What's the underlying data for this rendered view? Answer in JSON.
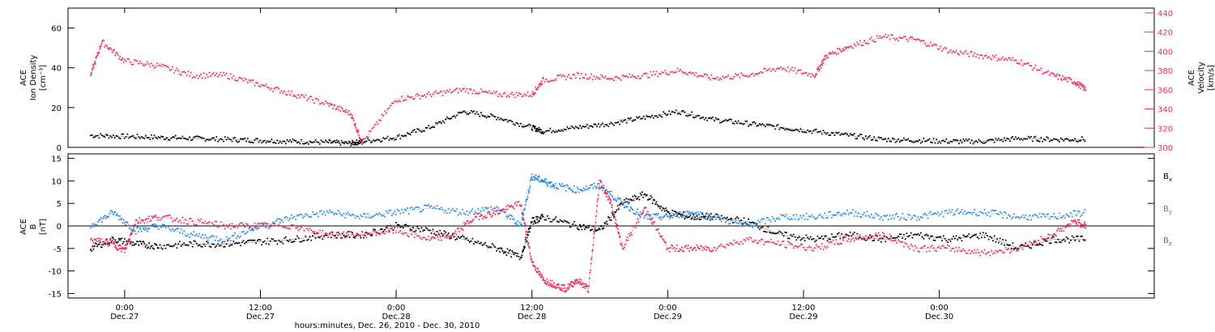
{
  "chart_data": [
    {
      "type": "scatter",
      "panel": "top",
      "ylabel_left": [
        "ACE",
        "Ion Density",
        "[cm⁻³]"
      ],
      "ylabel_right": [
        "ACE",
        "Velocity",
        "[km/s]"
      ],
      "x_range_hours": [
        -5,
        91
      ],
      "ylim_left": [
        0,
        70
      ],
      "ylim_right": [
        300,
        445
      ],
      "yticks_left": [
        0,
        20,
        40,
        60
      ],
      "yticks_right": [
        300,
        320,
        340,
        360,
        380,
        400,
        420,
        440
      ],
      "series": [
        {
          "axis": "left",
          "color": "#000000",
          "x": [
            -3,
            0,
            3,
            6,
            9,
            12,
            15,
            18,
            20,
            21,
            24,
            27,
            30,
            33,
            36,
            37,
            40,
            43,
            46,
            49,
            52,
            55,
            58,
            61,
            64,
            67,
            70,
            73,
            76,
            79,
            82,
            85
          ],
          "y": [
            6,
            5.5,
            5,
            4.5,
            4,
            3.5,
            3,
            2.5,
            2,
            3,
            5,
            10,
            18,
            15,
            10,
            8,
            10,
            12,
            15,
            18,
            14,
            12,
            10,
            8,
            6,
            4,
            3.5,
            3,
            3,
            4.5,
            4,
            4
          ]
        },
        {
          "axis": "right",
          "color": "#e83060",
          "x": [
            -3,
            -2,
            0,
            3,
            6,
            9,
            12,
            15,
            18,
            20,
            21,
            24,
            27,
            30,
            33,
            36,
            37,
            40,
            43,
            46,
            49,
            52,
            55,
            58,
            61,
            62,
            64,
            67,
            70,
            73,
            76,
            79,
            82,
            84,
            85
          ],
          "y": [
            375,
            410,
            390,
            385,
            375,
            375,
            365,
            355,
            345,
            335,
            305,
            350,
            355,
            360,
            355,
            355,
            370,
            375,
            372,
            375,
            380,
            372,
            375,
            383,
            375,
            395,
            405,
            415,
            412,
            400,
            395,
            390,
            375,
            368,
            360
          ]
        }
      ]
    },
    {
      "type": "scatter",
      "panel": "bottom",
      "ylabel_left": [
        "ACE",
        "B",
        "[nT]"
      ],
      "x_range_hours": [
        -5,
        91
      ],
      "ylim": [
        -16,
        16
      ],
      "yticks": [
        -15,
        -10,
        -5,
        0,
        5,
        10,
        15
      ],
      "xticks": [
        {
          "hour": 0,
          "time": "0:00",
          "date": "Dec.27"
        },
        {
          "hour": 12,
          "time": "12:00",
          "date": "Dec.27"
        },
        {
          "hour": 24,
          "time": "0:00",
          "date": "Dec.28"
        },
        {
          "hour": 36,
          "time": "12:00",
          "date": "Dec.28"
        },
        {
          "hour": 48,
          "time": "0:00",
          "date": "Dec.29"
        },
        {
          "hour": 60,
          "time": "12:00",
          "date": "Dec.29"
        },
        {
          "hour": 72,
          "time": "0:00",
          "date": "Dec.30"
        }
      ],
      "xlabel": "hours:minutes, Dec. 26, 2010 - Dec. 30, 2010",
      "series": [
        {
          "name": "Bx",
          "color": "#000000",
          "x": [
            -3,
            -1,
            1,
            3,
            6,
            9,
            12,
            15,
            18,
            21,
            24,
            27,
            30,
            33,
            35,
            36,
            37,
            40,
            42,
            44,
            46,
            48,
            50,
            52,
            55,
            58,
            61,
            64,
            67,
            70,
            73,
            76,
            79,
            82,
            85
          ],
          "y": [
            -5,
            -3,
            -4,
            -4.5,
            -4,
            -4,
            -3.5,
            -3,
            -2,
            -2,
            0,
            -1,
            -3,
            -5,
            -7,
            1,
            2,
            0,
            -1,
            5,
            7,
            3,
            2,
            2,
            1,
            -2,
            -3,
            -2,
            -3,
            -2,
            -3,
            -2,
            -5,
            -3,
            -3
          ]
        },
        {
          "name": "By",
          "color": "#2a8ae0",
          "x": [
            -3,
            -1,
            1,
            3,
            6,
            9,
            12,
            15,
            18,
            21,
            24,
            27,
            30,
            33,
            35,
            36,
            37,
            38,
            40,
            42,
            44,
            46,
            48,
            50,
            52,
            55,
            58,
            61,
            64,
            67,
            70,
            73,
            76,
            79,
            82,
            85
          ],
          "y": [
            0,
            3,
            -1,
            0,
            -2,
            -3,
            0,
            2,
            3,
            2,
            3,
            4,
            3,
            4,
            0,
            11,
            10,
            9,
            8,
            9,
            5,
            2,
            2,
            3,
            2,
            0,
            2,
            2,
            3,
            2,
            2,
            3,
            3,
            2,
            2,
            3
          ]
        },
        {
          "name": "Bz",
          "color": "#e83060",
          "x": [
            -3,
            -1,
            0,
            1,
            3,
            6,
            9,
            12,
            15,
            18,
            21,
            24,
            27,
            29,
            31,
            33,
            35,
            36,
            37,
            38,
            39,
            40,
            41,
            42,
            43,
            44,
            46,
            48,
            50,
            52,
            55,
            58,
            61,
            64,
            67,
            70,
            73,
            76,
            79,
            82,
            84,
            85
          ],
          "y": [
            -3,
            -4,
            -5.5,
            1,
            2,
            1,
            0,
            0,
            0,
            -2,
            -2,
            -1,
            -3,
            -2,
            2,
            3,
            5,
            -8,
            -12,
            -13,
            -14,
            -12,
            -14,
            10,
            5,
            -5,
            4,
            -5,
            -5,
            -5,
            -3,
            -4,
            -5,
            -3,
            -2,
            -5,
            -5,
            -6,
            -5,
            -2,
            1,
            0
          ]
        }
      ]
    }
  ],
  "legend": {
    "bx": "B",
    "bx_sub": "x",
    "by": "B",
    "by_sub": "y",
    "bz": "B",
    "bz_sub": "z"
  },
  "colors": {
    "black": "#000000",
    "red": "#e83060",
    "blue": "#2a8ae0"
  }
}
